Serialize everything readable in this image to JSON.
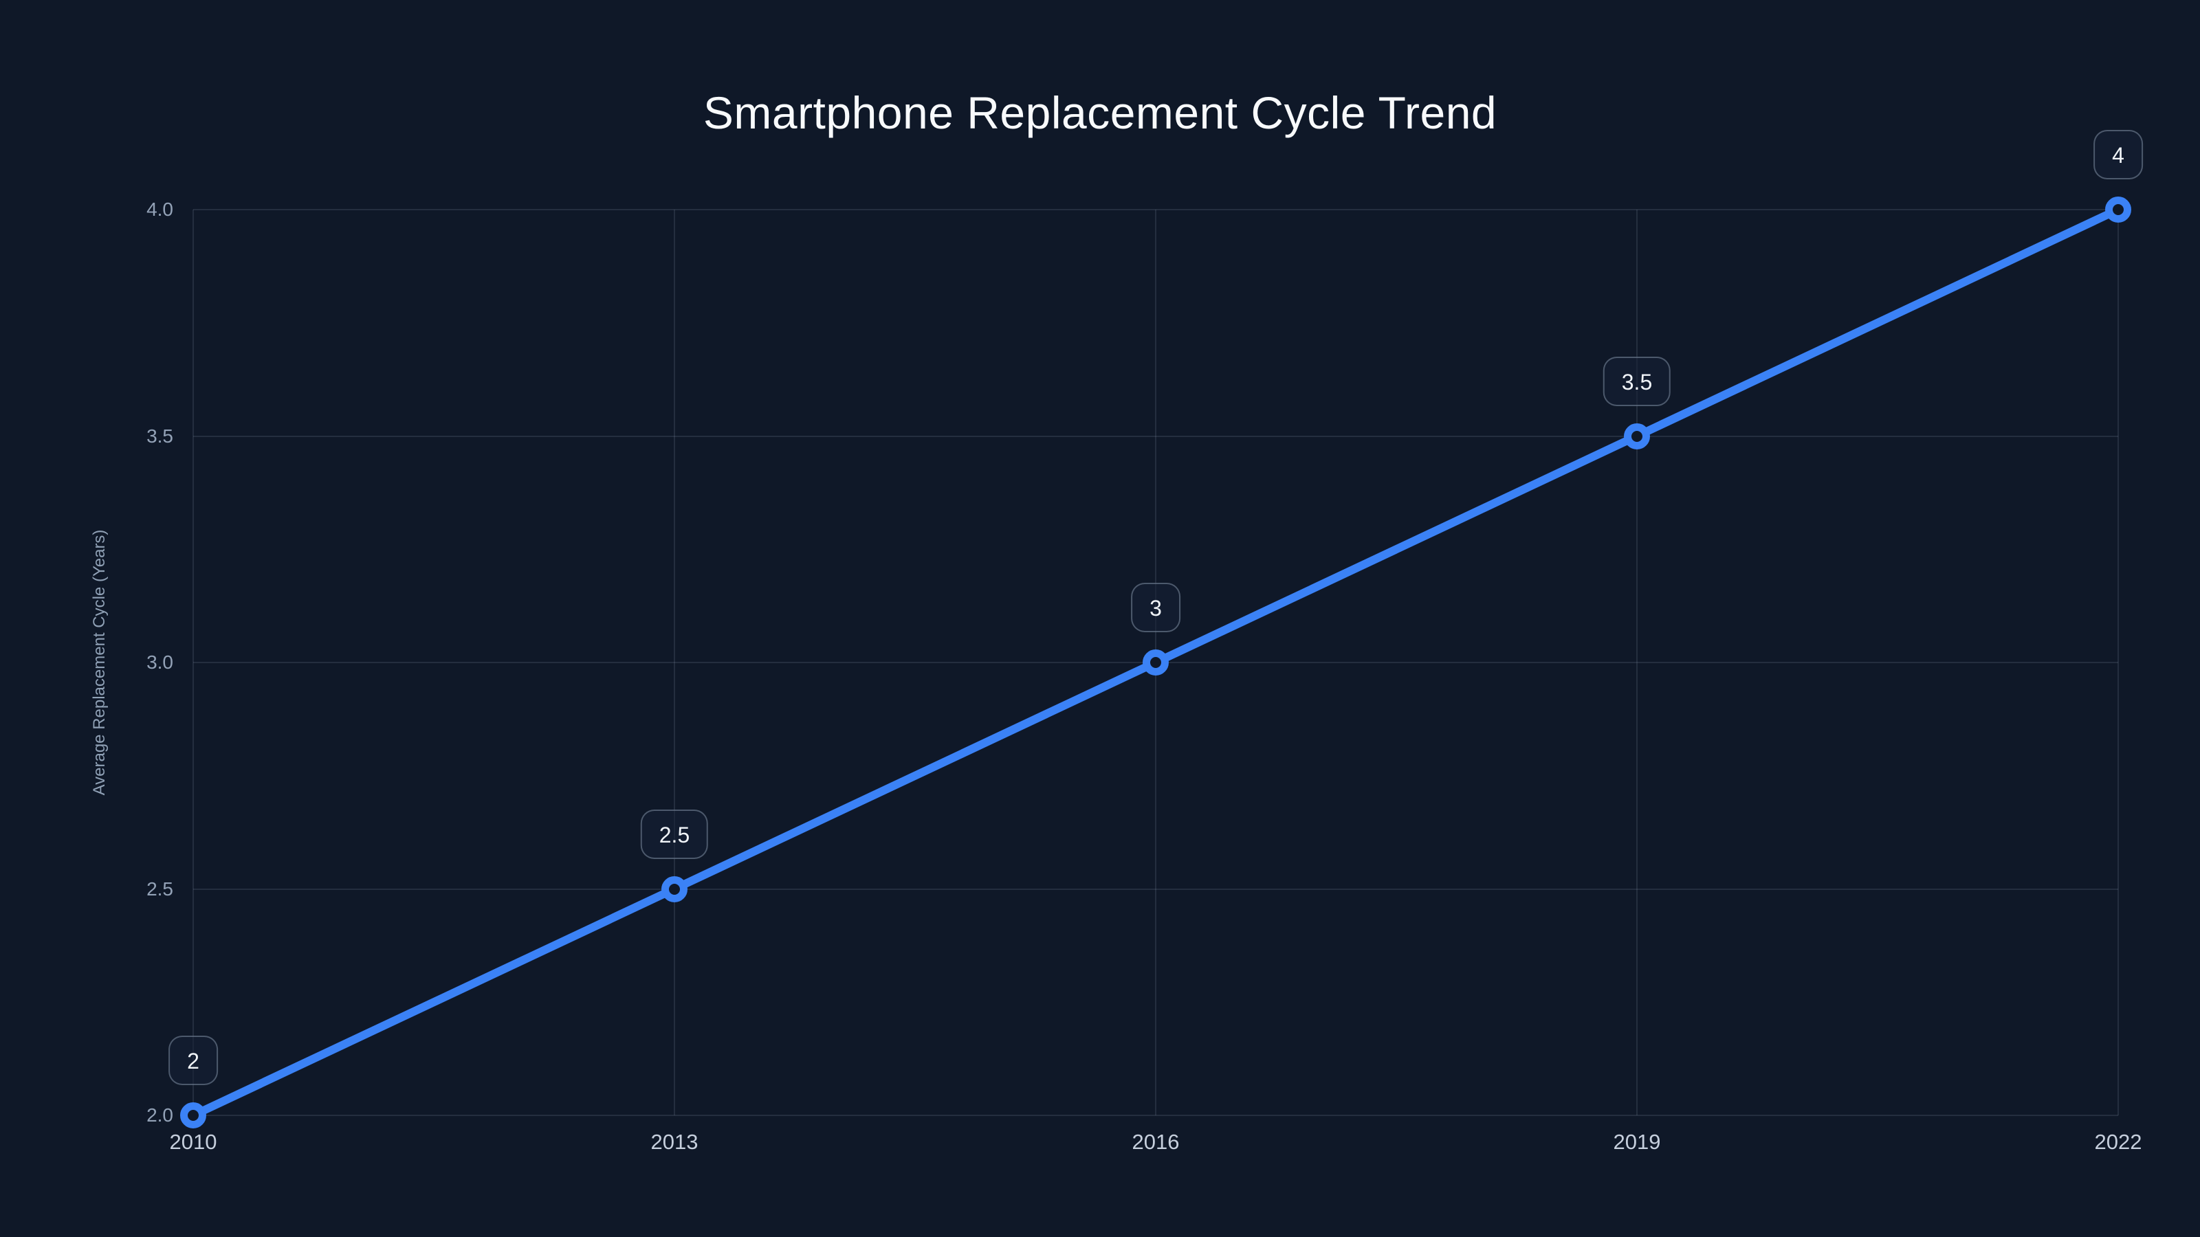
{
  "chart_data": {
    "type": "line",
    "title": "Smartphone Replacement Cycle Trend",
    "xlabel": "",
    "ylabel": "Average Replacement Cycle (Years)",
    "x": [
      2010,
      2013,
      2016,
      2019,
      2022
    ],
    "x_tick_labels": [
      "2010",
      "2013",
      "2016",
      "2019",
      "2022"
    ],
    "series": [
      {
        "name": "Average Replacement Cycle",
        "values": [
          2,
          2.5,
          3,
          3.5,
          4
        ]
      }
    ],
    "point_labels": [
      "2",
      "2.5",
      "3",
      "3.5",
      "4"
    ],
    "y_ticks": [
      2.0,
      2.5,
      3.0,
      3.5,
      4.0
    ],
    "y_tick_labels": [
      "2.0",
      "2.5",
      "3.0",
      "3.5",
      "4.0"
    ],
    "ylim": [
      2.0,
      4.0
    ],
    "xlim": [
      2010,
      2022
    ],
    "grid": true,
    "legend": false,
    "marker_style": "open-circle",
    "colors": {
      "background": "#0f1828",
      "line": "#3b82f6",
      "marker_fill": "#0f1828",
      "grid": "rgba(148,163,184,0.16)",
      "title_text": "#f8fafc",
      "badge_text": "#f1f5f9",
      "badge_border": "rgba(148,163,184,0.45)",
      "badge_fill": "rgba(22,32,52,0.55)",
      "x_tick_text": "#c6cfdd",
      "y_tick_text": "#93a2b7",
      "axis_label_text": "#8fa0b5"
    }
  }
}
